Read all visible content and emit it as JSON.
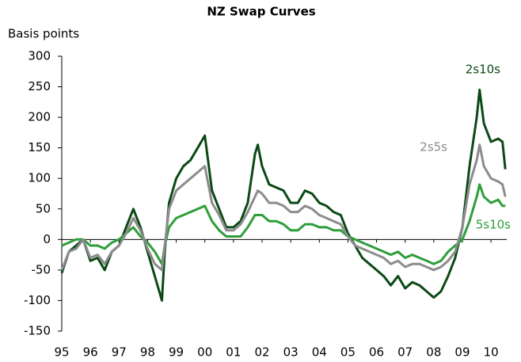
{
  "chart_data": {
    "type": "line",
    "title": "NZ Swap Curves",
    "y_label": "Basis points",
    "x": [
      1995.0,
      1995.25,
      1995.5,
      1995.75,
      1996.0,
      1996.25,
      1996.5,
      1996.75,
      1997.0,
      1997.25,
      1997.5,
      1997.75,
      1998.0,
      1998.25,
      1998.5,
      1998.6,
      1998.75,
      1999.0,
      1999.25,
      1999.5,
      1999.75,
      2000.0,
      2000.25,
      2000.5,
      2000.75,
      2001.0,
      2001.25,
      2001.5,
      2001.75,
      2001.85,
      2002.0,
      2002.25,
      2002.5,
      2002.75,
      2003.0,
      2003.25,
      2003.5,
      2003.75,
      2004.0,
      2004.25,
      2004.5,
      2004.75,
      2005.0,
      2005.25,
      2005.5,
      2005.75,
      2006.0,
      2006.25,
      2006.5,
      2006.75,
      2007.0,
      2007.25,
      2007.5,
      2007.75,
      2008.0,
      2008.25,
      2008.5,
      2008.75,
      2009.0,
      2009.25,
      2009.5,
      2009.6,
      2009.75,
      2010.0,
      2010.25,
      2010.4,
      2010.5
    ],
    "series": [
      {
        "name": "2s10s",
        "color": "#0b4a14",
        "values": [
          -55,
          -20,
          -10,
          0,
          -35,
          -30,
          -50,
          -20,
          -10,
          20,
          50,
          20,
          -20,
          -60,
          -100,
          -20,
          60,
          100,
          120,
          130,
          150,
          170,
          80,
          50,
          20,
          20,
          30,
          60,
          140,
          155,
          120,
          90,
          85,
          80,
          60,
          60,
          80,
          75,
          60,
          55,
          45,
          40,
          10,
          -10,
          -30,
          -40,
          -50,
          -60,
          -75,
          -60,
          -80,
          -70,
          -75,
          -85,
          -95,
          -85,
          -60,
          -30,
          20,
          120,
          200,
          245,
          190,
          160,
          165,
          160,
          115
        ]
      },
      {
        "name": "5s10s",
        "color": "#2e9e3a",
        "values": [
          -10,
          -5,
          0,
          0,
          -10,
          -10,
          -15,
          -5,
          0,
          10,
          20,
          5,
          -5,
          -20,
          -40,
          -10,
          20,
          35,
          40,
          45,
          50,
          55,
          30,
          15,
          5,
          5,
          5,
          20,
          40,
          40,
          40,
          30,
          30,
          25,
          15,
          15,
          25,
          25,
          20,
          20,
          15,
          15,
          5,
          0,
          -5,
          -10,
          -15,
          -20,
          -25,
          -20,
          -30,
          -25,
          -30,
          -35,
          -40,
          -35,
          -20,
          -10,
          0,
          30,
          70,
          90,
          70,
          60,
          65,
          55,
          55
        ]
      },
      {
        "name": "2s5s",
        "color": "#8c8c8c",
        "values": [
          -50,
          -20,
          -15,
          0,
          -30,
          -25,
          -40,
          -20,
          -10,
          10,
          35,
          15,
          -15,
          -40,
          -50,
          -10,
          50,
          80,
          90,
          100,
          110,
          120,
          60,
          40,
          15,
          15,
          25,
          45,
          70,
          80,
          75,
          60,
          60,
          55,
          45,
          45,
          55,
          50,
          40,
          35,
          30,
          25,
          5,
          -10,
          -15,
          -20,
          -25,
          -30,
          -40,
          -35,
          -45,
          -40,
          -40,
          -45,
          -50,
          -45,
          -35,
          -20,
          20,
          90,
          130,
          155,
          120,
          100,
          95,
          90,
          70
        ]
      }
    ],
    "xlim": [
      1995,
      2010.55
    ],
    "ylim": [
      -150,
      300
    ],
    "xticks": [
      {
        "value": 1995,
        "label": "95"
      },
      {
        "value": 1996,
        "label": "96"
      },
      {
        "value": 1997,
        "label": "97"
      },
      {
        "value": 1998,
        "label": "98"
      },
      {
        "value": 1999,
        "label": "99"
      },
      {
        "value": 2000,
        "label": "00"
      },
      {
        "value": 2001,
        "label": "01"
      },
      {
        "value": 2002,
        "label": "02"
      },
      {
        "value": 2003,
        "label": "03"
      },
      {
        "value": 2004,
        "label": "04"
      },
      {
        "value": 2005,
        "label": "05"
      },
      {
        "value": 2006,
        "label": "06"
      },
      {
        "value": 2007,
        "label": "07"
      },
      {
        "value": 2008,
        "label": "08"
      },
      {
        "value": 2009,
        "label": "09"
      },
      {
        "value": 2010,
        "label": "10"
      }
    ],
    "yticks": [
      -150,
      -100,
      -50,
      0,
      50,
      100,
      150,
      200,
      250,
      300
    ]
  }
}
